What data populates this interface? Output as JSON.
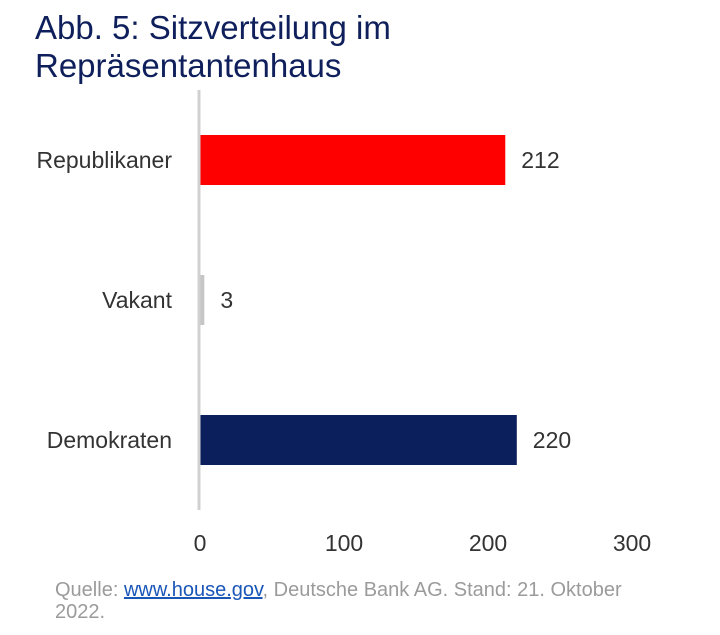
{
  "chart_data": {
    "type": "bar",
    "orientation": "horizontal",
    "title": "Abb. 5: Sitzverteilung im Repräsentantenhaus",
    "categories": [
      "Republikaner",
      "Vakant",
      "Demokraten"
    ],
    "values": [
      212,
      3,
      220
    ],
    "colors": [
      "#ff0000",
      "#c6c6c6",
      "#0b1f5c"
    ],
    "xlim": [
      0,
      300
    ],
    "xticks": [
      0,
      100,
      200,
      300
    ],
    "grid": false,
    "data_labels": true
  },
  "source": {
    "prefix": "Quelle: ",
    "link_text": "www.house.gov",
    "suffix": ", Deutsche Bank AG. Stand: 21. Oktober 2022."
  },
  "colors": {
    "title": "#0e1f5b",
    "text": "#333333",
    "axis": "#d0d0d0",
    "source_text": "#9b9b9b",
    "link": "#1a56b8"
  }
}
